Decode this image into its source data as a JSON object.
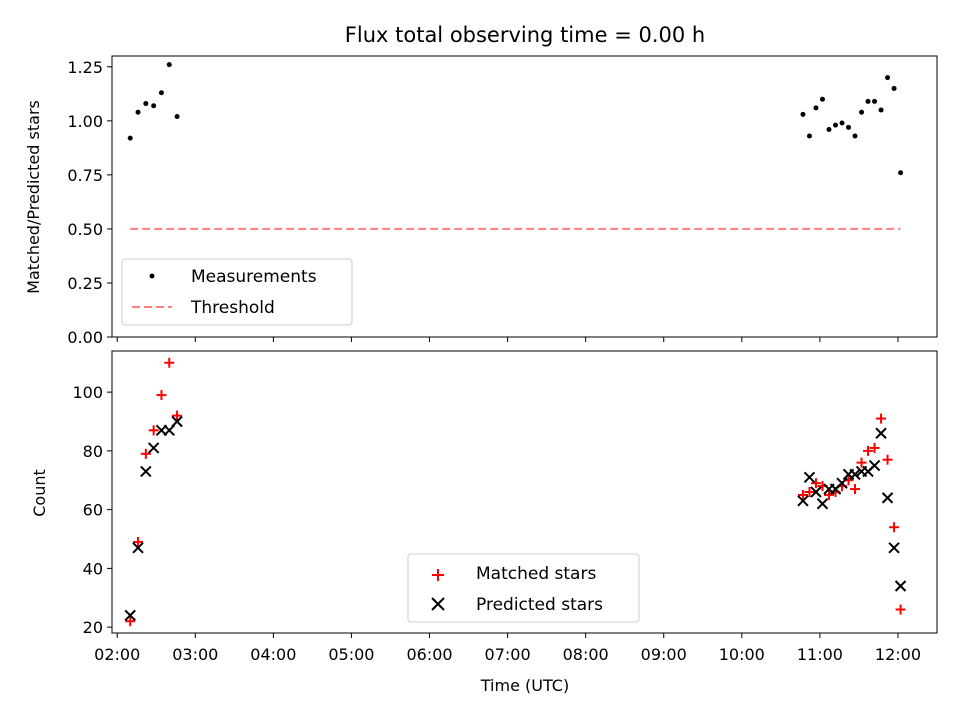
{
  "chart_data": [
    {
      "type": "scatter",
      "title": "Flux total observing time = 0.00 h",
      "xlabel": "",
      "ylabel": "Matched/Predicted stars",
      "xlim": [
        "01:56",
        "12:30"
      ],
      "ylim": [
        0,
        1.3
      ],
      "yticks": [
        0.0,
        0.25,
        0.5,
        0.75,
        1.0,
        1.25
      ],
      "ytick_labels": [
        "0.00",
        "0.25",
        "0.50",
        "0.75",
        "1.00",
        "1.25"
      ],
      "xticks": [
        "02:00",
        "03:00",
        "04:00",
        "05:00",
        "06:00",
        "07:00",
        "08:00",
        "09:00",
        "10:00",
        "11:00",
        "12:00"
      ],
      "grid": false,
      "legend": {
        "position": "lower-left",
        "entries": [
          "Measurements",
          "Threshold"
        ]
      },
      "series": [
        {
          "name": "Measurements",
          "kind": "points",
          "color": "#000000",
          "x": [
            "02:10",
            "02:16",
            "02:22",
            "02:28",
            "02:34",
            "02:40",
            "02:46",
            "10:47",
            "10:52",
            "10:57",
            "11:02",
            "11:07",
            "11:12",
            "11:17",
            "11:22",
            "11:27",
            "11:32",
            "11:37",
            "11:42",
            "11:47",
            "11:52",
            "11:57",
            "12:02"
          ],
          "y": [
            0.92,
            1.04,
            1.08,
            1.07,
            1.13,
            1.26,
            1.02,
            1.03,
            0.93,
            1.06,
            1.1,
            0.96,
            0.98,
            0.99,
            0.97,
            0.93,
            1.04,
            1.09,
            1.09,
            1.05,
            1.2,
            1.15,
            0.76
          ]
        },
        {
          "name": "Threshold",
          "kind": "dashed-line",
          "color": "#ff7f7f",
          "x": [
            "02:10",
            "12:02"
          ],
          "y": [
            0.5,
            0.5
          ]
        }
      ]
    },
    {
      "type": "scatter",
      "title": "",
      "xlabel": "Time (UTC)",
      "ylabel": "Count",
      "xlim": [
        "01:56",
        "12:30"
      ],
      "ylim": [
        18,
        114
      ],
      "yticks": [
        20,
        40,
        60,
        80,
        100
      ],
      "ytick_labels": [
        "20",
        "40",
        "60",
        "80",
        "100"
      ],
      "xticks": [
        "02:00",
        "03:00",
        "04:00",
        "05:00",
        "06:00",
        "07:00",
        "08:00",
        "09:00",
        "10:00",
        "11:00",
        "12:00"
      ],
      "grid": false,
      "legend": {
        "position": "lower-center",
        "entries": [
          "Matched stars",
          "Predicted stars"
        ]
      },
      "series": [
        {
          "name": "Matched stars",
          "marker": "plus",
          "color": "#ff0000",
          "x": [
            "02:10",
            "02:16",
            "02:22",
            "02:28",
            "02:34",
            "02:40",
            "02:46",
            "10:47",
            "10:52",
            "10:57",
            "11:02",
            "11:07",
            "11:12",
            "11:17",
            "11:22",
            "11:27",
            "11:32",
            "11:37",
            "11:42",
            "11:47",
            "11:52",
            "11:57",
            "12:02"
          ],
          "y": [
            22,
            49,
            79,
            87,
            99,
            110,
            92,
            65,
            66,
            69,
            68,
            65,
            66,
            68,
            70,
            67,
            76,
            80,
            81,
            91,
            77,
            54,
            26
          ]
        },
        {
          "name": "Predicted stars",
          "marker": "x",
          "color": "#000000",
          "x": [
            "02:10",
            "02:16",
            "02:22",
            "02:28",
            "02:34",
            "02:40",
            "02:46",
            "10:47",
            "10:52",
            "10:57",
            "11:02",
            "11:07",
            "11:12",
            "11:17",
            "11:22",
            "11:27",
            "11:32",
            "11:37",
            "11:42",
            "11:47",
            "11:52",
            "11:57",
            "12:02"
          ],
          "y": [
            24,
            47,
            73,
            81,
            87,
            87,
            90,
            63,
            71,
            66,
            62,
            67,
            67,
            69,
            72,
            72,
            73,
            73,
            75,
            86,
            64,
            47,
            34
          ]
        }
      ]
    }
  ]
}
